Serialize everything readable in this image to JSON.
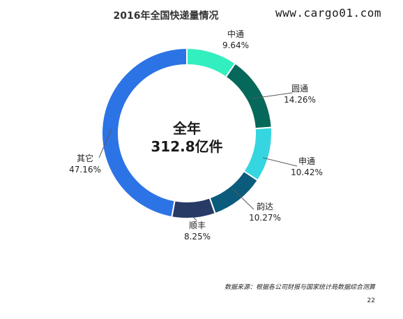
{
  "watermark": "www.cargo01.com",
  "source_note": "数据来源：根据各公司财报与国家统计局数据综合测算",
  "page_number": "22",
  "colors": {
    "zhongtong": "#33efbf",
    "yuantong": "#06685a",
    "shentong": "#35d6e0",
    "yunda": "#0a5b7c",
    "shunfeng": "#283b66",
    "other": "#2c73e5",
    "leader": "#5a5a5a",
    "center_text": "#1a1a1a",
    "label_text": "#222222"
  },
  "chart_data": {
    "type": "pie",
    "title": "2016年全国快递量情况",
    "center_label": [
      "全年",
      "312.8亿件"
    ],
    "total": 312.8,
    "unit": "亿件",
    "slices": [
      {
        "name": "中通",
        "value": 9.64,
        "label": "9.64%"
      },
      {
        "name": "圆通",
        "value": 14.26,
        "label": "14.26%"
      },
      {
        "name": "申通",
        "value": 10.42,
        "label": "10.42%"
      },
      {
        "name": "韵达",
        "value": 10.27,
        "label": "10.27%"
      },
      {
        "name": "顺丰",
        "value": 8.25,
        "label": "8.25%"
      },
      {
        "name": "其它",
        "value": 47.16,
        "label": "47.16%"
      }
    ]
  }
}
